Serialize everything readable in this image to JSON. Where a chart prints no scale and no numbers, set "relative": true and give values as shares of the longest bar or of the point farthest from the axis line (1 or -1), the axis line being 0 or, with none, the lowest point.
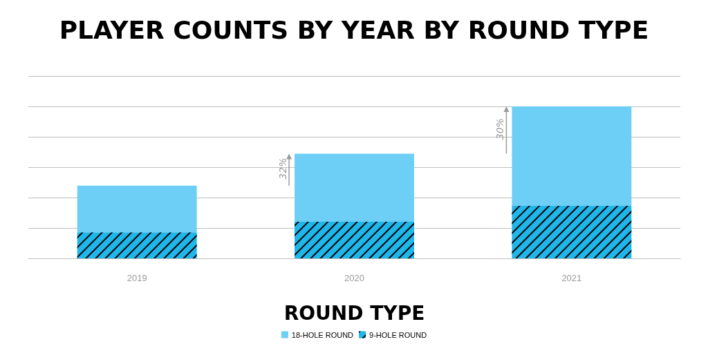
{
  "chart_data": {
    "type": "bar",
    "title": "PLAYER COUNTS BY YEAR BY ROUND TYPE",
    "xlabel": "ROUND TYPE",
    "categories": [
      "2019",
      "2020",
      "2021"
    ],
    "relative": true,
    "stacked": true,
    "grid": "y",
    "legend": "bottom",
    "series": [
      {
        "name": "9-HOLE ROUND",
        "color": "#1fb6ea",
        "values": [
          0.172,
          0.241,
          0.345
        ]
      },
      {
        "name": "18-HOLE ROUND",
        "color": "#6dcff6",
        "values": [
          0.306,
          0.448,
          0.655
        ]
      }
    ],
    "annotations": [
      "32%",
      "30%"
    ]
  }
}
